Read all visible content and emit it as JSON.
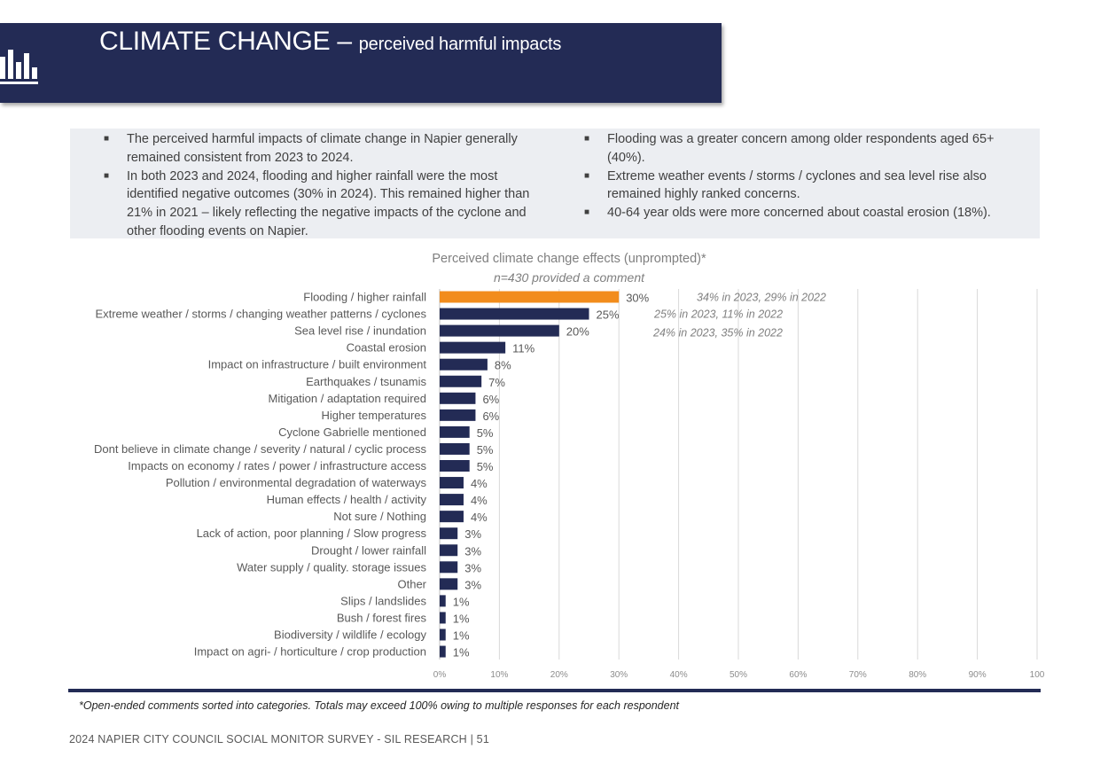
{
  "header": {
    "title": "CLIMATE CHANGE",
    "separator": " – ",
    "subtitle": "perceived harmful impacts",
    "icon": "bar-chart-icon"
  },
  "summary": {
    "left_bullets": [
      "The perceived harmful impacts of climate change in Napier generally remained consistent from 2023 to 2024.",
      "In both 2023 and 2024, flooding and higher rainfall were the most identified negative outcomes (30% in 2024). This remained higher than 21% in 2021 – likely reflecting the negative impacts of the cyclone and other flooding events on Napier."
    ],
    "right_bullets": [
      "Flooding was a greater concern among older respondents aged 65+ (40%).",
      "Extreme weather events / storms / cyclones and sea level rise also remained highly ranked concerns.",
      "40-64 year olds were more concerned about coastal erosion (18%)."
    ]
  },
  "chart_data": {
    "type": "bar",
    "orientation": "horizontal",
    "title": "Perceived climate change effects (unprompted)*",
    "subtitle": "n=430 provided a comment",
    "categories": [
      "Flooding / higher rainfall",
      "Extreme weather / storms / changing weather patterns / cyclones",
      "Sea level rise / inundation",
      "Coastal erosion",
      "Impact on infrastructure / built environment",
      "Earthquakes / tsunamis",
      "Mitigation / adaptation required",
      "Higher temperatures",
      "Cyclone Gabrielle mentioned",
      "Dont believe in climate change / severity / natural / cyclic process",
      "Impacts on economy / rates / power / infrastructure access",
      "Pollution / environmental degradation of waterways",
      "Human effects / health / activity",
      "Not sure / Nothing",
      "Lack of action, poor planning / Slow progress",
      "Drought / lower rainfall",
      "Water supply / quality. storage issues",
      "Other",
      "Slips / landslides",
      "Bush / forest fires",
      "Biodiversity / wildlife / ecology",
      "Impact on agri- / horticulture / crop production"
    ],
    "values": [
      30,
      25,
      20,
      11,
      8,
      7,
      6,
      6,
      5,
      5,
      5,
      4,
      4,
      4,
      3,
      3,
      3,
      3,
      1,
      1,
      1,
      1
    ],
    "value_labels": [
      "30%",
      "25%",
      "20%",
      "11%",
      "8%",
      "7%",
      "6%",
      "6%",
      "5%",
      "5%",
      "5%",
      "4%",
      "4%",
      "4%",
      "3%",
      "3%",
      "3%",
      "3%",
      "1%",
      "1%",
      "1%",
      "1%"
    ],
    "highlight_index": 0,
    "colors": {
      "highlight": "#f28c1c",
      "bar": "#232b55",
      "grid": "#d9d9d9"
    },
    "annotations": [
      {
        "row": 0,
        "text": "34% in 2023, 29% in 2022"
      },
      {
        "row": 1,
        "text": "25% in 2023, 11% in 2022"
      },
      {
        "row": 2,
        "text": "24% in 2023, 35% in 2022"
      }
    ],
    "xlim": [
      0,
      100
    ],
    "xticks": [
      "0%",
      "10%",
      "20%",
      "30%",
      "40%",
      "50%",
      "60%",
      "70%",
      "80%",
      "90%",
      "100"
    ],
    "grid": true
  },
  "footnote": "*Open-ended comments sorted into categories. Totals may exceed 100% owing to multiple responses for each respondent",
  "footer": "2024 NAPIER CITY COUNCIL SOCIAL MONITOR SURVEY - SIL RESEARCH | 51"
}
